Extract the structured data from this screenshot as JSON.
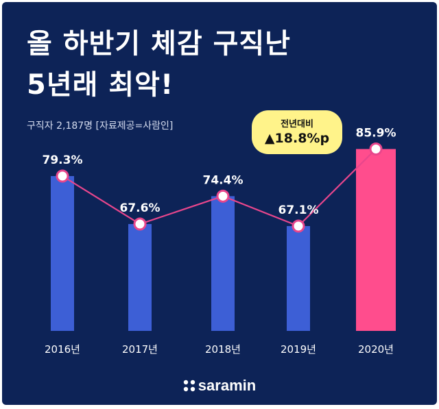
{
  "headline": {
    "line1": "올 하반기 체감 구직난",
    "line2": "5년래 최악!"
  },
  "subtitle": "구직자 2,187명 [자료제공=사람인]",
  "callout": {
    "label": "전년대비",
    "value": "▲18.8%p"
  },
  "logo": "saramin",
  "colors": {
    "background": "#0d2357",
    "bar": "#3d5fd6",
    "bar_highlight": "#ff4d8d",
    "line": "#e8468c",
    "callout": "#fff38a"
  },
  "chart_data": {
    "type": "bar",
    "categories": [
      "2016년",
      "2017년",
      "2018년",
      "2019년",
      "2020년"
    ],
    "values": [
      79.3,
      67.6,
      74.4,
      67.1,
      85.9
    ],
    "labels": [
      "79.3%",
      "67.6%",
      "74.4%",
      "67.1%",
      "85.9%"
    ],
    "highlight_index": 4,
    "overlay_line": true,
    "title": "",
    "xlabel": "",
    "ylabel": "",
    "grid": false,
    "legend": "none"
  }
}
